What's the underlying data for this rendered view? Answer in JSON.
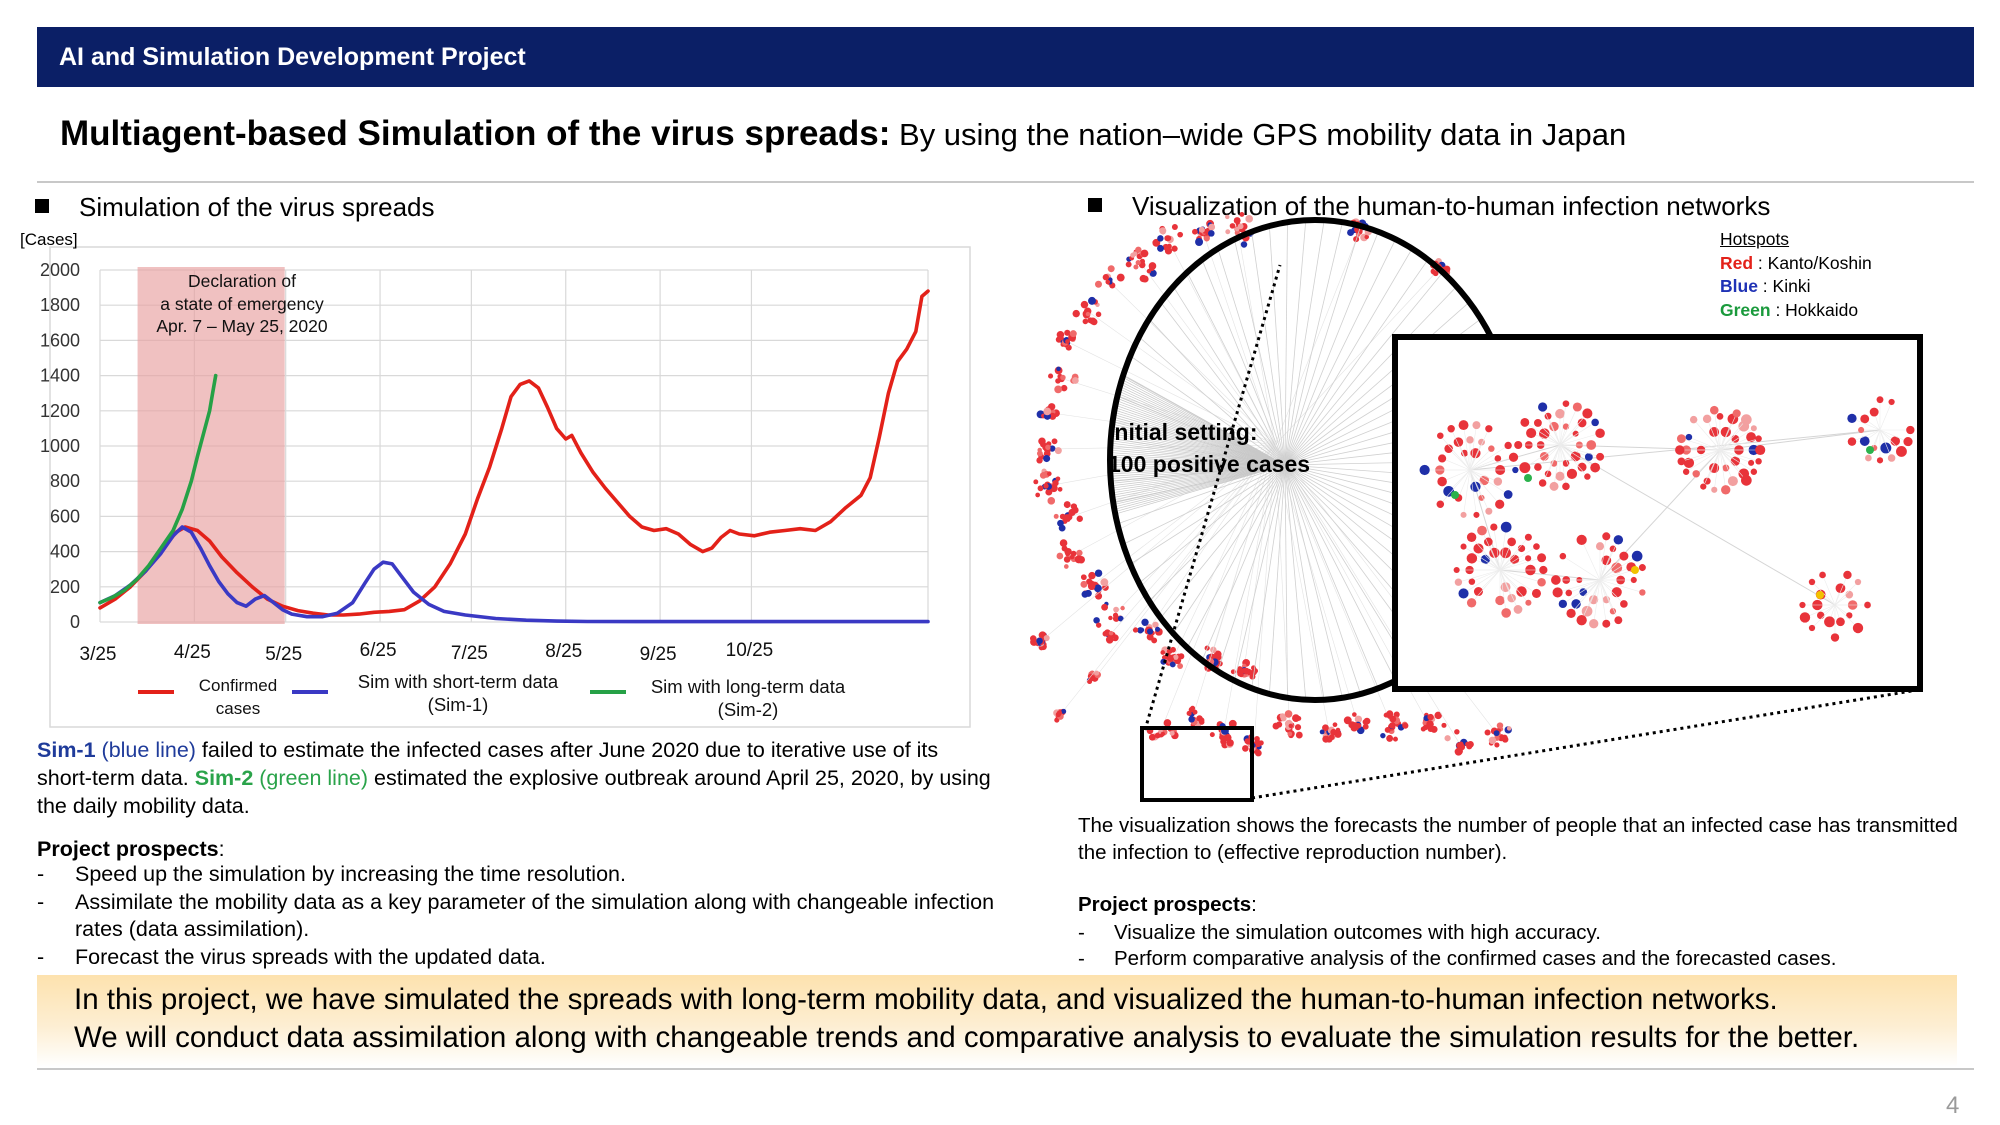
{
  "header": {
    "title": "AI and Simulation Development Project"
  },
  "title": {
    "main": "Multiagent-based Simulation of the virus spreads:",
    "sub": " By using the nation–wide GPS mobility data in Japan"
  },
  "left_section": {
    "heading": "Simulation of the virus spreads"
  },
  "right_section": {
    "heading": "Visualization of the human-to-human infection networks"
  },
  "chart_data": {
    "type": "line",
    "ylabel": "[Cases]",
    "ylim": [
      0,
      2000
    ],
    "yticks": [
      "2000",
      "1800",
      "1600",
      "1400",
      "1200",
      "1000",
      "800",
      "600",
      "400",
      "200",
      "0"
    ],
    "xticks": [
      "3/25",
      "4/25",
      "5/25",
      "6/25",
      "7/25",
      "8/25",
      "9/25",
      "10/25"
    ],
    "x_start": "3/25",
    "annotation": {
      "lines": [
        "Declaration of",
        "a state of emergency",
        "Apr. 7 – May 25, 2020"
      ],
      "x_range": [
        "4/7",
        "5/25"
      ],
      "color": "#e8a0a0"
    },
    "legend": [
      {
        "line1": "Confirmed",
        "line2": "cases",
        "color": "#e32119"
      },
      {
        "line1": "Sim with short-term data",
        "line2": "(Sim-1)",
        "color": "#3a39c4"
      },
      {
        "line1": "Sim with long-term data",
        "line2": "(Sim-2)",
        "color": "#26a146"
      }
    ],
    "series": [
      {
        "name": "Confirmed cases",
        "color": "#e32119",
        "points": [
          [
            0,
            80
          ],
          [
            5,
            130
          ],
          [
            10,
            200
          ],
          [
            15,
            290
          ],
          [
            20,
            400
          ],
          [
            25,
            510
          ],
          [
            28,
            540
          ],
          [
            32,
            520
          ],
          [
            36,
            460
          ],
          [
            40,
            370
          ],
          [
            45,
            280
          ],
          [
            50,
            200
          ],
          [
            55,
            130
          ],
          [
            60,
            90
          ],
          [
            65,
            65
          ],
          [
            70,
            50
          ],
          [
            75,
            40
          ],
          [
            80,
            40
          ],
          [
            85,
            45
          ],
          [
            90,
            55
          ],
          [
            95,
            60
          ],
          [
            100,
            70
          ],
          [
            105,
            120
          ],
          [
            110,
            200
          ],
          [
            115,
            330
          ],
          [
            120,
            500
          ],
          [
            124,
            700
          ],
          [
            128,
            880
          ],
          [
            132,
            1100
          ],
          [
            135,
            1280
          ],
          [
            138,
            1350
          ],
          [
            141,
            1370
          ],
          [
            144,
            1330
          ],
          [
            147,
            1220
          ],
          [
            150,
            1100
          ],
          [
            153,
            1040
          ],
          [
            155,
            1060
          ],
          [
            158,
            960
          ],
          [
            162,
            850
          ],
          [
            166,
            760
          ],
          [
            170,
            680
          ],
          [
            174,
            600
          ],
          [
            178,
            540
          ],
          [
            182,
            520
          ],
          [
            186,
            530
          ],
          [
            190,
            500
          ],
          [
            194,
            440
          ],
          [
            198,
            400
          ],
          [
            201,
            420
          ],
          [
            204,
            480
          ],
          [
            207,
            520
          ],
          [
            210,
            500
          ],
          [
            215,
            490
          ],
          [
            220,
            510
          ],
          [
            225,
            520
          ],
          [
            230,
            530
          ],
          [
            235,
            520
          ],
          [
            240,
            570
          ],
          [
            245,
            650
          ],
          [
            250,
            720
          ],
          [
            253,
            820
          ],
          [
            256,
            1050
          ],
          [
            259,
            1300
          ],
          [
            262,
            1480
          ],
          [
            265,
            1550
          ],
          [
            268,
            1650
          ],
          [
            270,
            1850
          ],
          [
            272,
            1880
          ]
        ]
      },
      {
        "name": "Sim-1",
        "color": "#3a39c4",
        "points": [
          [
            0,
            110
          ],
          [
            5,
            150
          ],
          [
            10,
            210
          ],
          [
            15,
            290
          ],
          [
            20,
            390
          ],
          [
            24,
            490
          ],
          [
            27,
            540
          ],
          [
            30,
            510
          ],
          [
            33,
            420
          ],
          [
            36,
            320
          ],
          [
            39,
            230
          ],
          [
            42,
            160
          ],
          [
            45,
            110
          ],
          [
            48,
            90
          ],
          [
            51,
            130
          ],
          [
            54,
            150
          ],
          [
            57,
            110
          ],
          [
            60,
            70
          ],
          [
            63,
            45
          ],
          [
            68,
            30
          ],
          [
            73,
            30
          ],
          [
            78,
            50
          ],
          [
            83,
            110
          ],
          [
            87,
            220
          ],
          [
            90,
            300
          ],
          [
            93,
            340
          ],
          [
            96,
            330
          ],
          [
            99,
            260
          ],
          [
            103,
            170
          ],
          [
            108,
            100
          ],
          [
            113,
            60
          ],
          [
            120,
            40
          ],
          [
            130,
            20
          ],
          [
            140,
            10
          ],
          [
            150,
            5
          ],
          [
            160,
            3
          ],
          [
            180,
            2
          ],
          [
            200,
            2
          ],
          [
            220,
            2
          ],
          [
            240,
            2
          ],
          [
            260,
            2
          ],
          [
            272,
            2
          ]
        ]
      },
      {
        "name": "Sim-2",
        "color": "#26a146",
        "points": [
          [
            0,
            110
          ],
          [
            4,
            140
          ],
          [
            8,
            180
          ],
          [
            12,
            240
          ],
          [
            16,
            320
          ],
          [
            20,
            420
          ],
          [
            24,
            520
          ],
          [
            27,
            640
          ],
          [
            30,
            800
          ],
          [
            32,
            940
          ],
          [
            34,
            1070
          ],
          [
            36,
            1200
          ],
          [
            37,
            1300
          ],
          [
            38,
            1400
          ]
        ]
      }
    ]
  },
  "left_text": {
    "p1_sim1": "Sim-1",
    "p1_blue": " (blue line)",
    "p1_mid": " failed to estimate the infected cases after June 2020 due to iterative use of its short-term data. ",
    "p1_sim2": "Sim-2",
    "p1_green": " (green line)",
    "p1_end": " estimated the explosive outbreak around April 25, 2020, by using the daily mobility data.",
    "prospects_label": "Project prospects",
    "prospects": [
      "Speed up the simulation by increasing the time resolution.",
      "Assimilate the mobility data as a key parameter of the simulation along with changeable infection rates (data assimilation).",
      "Forecast the virus spreads with the updated data."
    ]
  },
  "network": {
    "initial_line1": "Initial setting:",
    "initial_line2": "100 positive cases",
    "hotspots_label": "Hotspots",
    "hotspots": [
      {
        "color_name": "Red",
        "region": "Kanto/Koshin",
        "color": "#e32119"
      },
      {
        "color_name": "Blue",
        "region": "Kinki",
        "color": "#1f32b5"
      },
      {
        "color_name": "Green",
        "region": "Hokkaido",
        "color": "#1a9a3c"
      }
    ]
  },
  "right_text": {
    "caption": "The visualization shows the forecasts the number of people that an infected case has transmitted the infection to (effective reproduction number).",
    "prospects_label": "Project prospects",
    "prospects": [
      "Visualize the simulation outcomes with high accuracy.",
      "Perform comparative analysis of the confirmed cases and the forecasted cases."
    ]
  },
  "summary": {
    "line1": "In this project, we have simulated the spreads with long-term mobility data, and visualized the human-to-human infection networks.",
    "line2": "We will conduct data assimilation along with changeable trends and comparative analysis to evaluate the simulation results for the better."
  },
  "page_number": "4"
}
